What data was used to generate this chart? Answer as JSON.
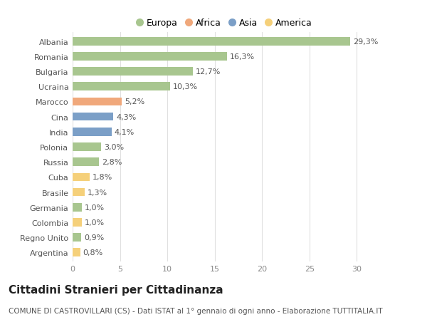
{
  "countries": [
    "Albania",
    "Romania",
    "Bulgaria",
    "Ucraina",
    "Marocco",
    "Cina",
    "India",
    "Polonia",
    "Russia",
    "Cuba",
    "Brasile",
    "Germania",
    "Colombia",
    "Regno Unito",
    "Argentina"
  ],
  "values": [
    29.3,
    16.3,
    12.7,
    10.3,
    5.2,
    4.3,
    4.1,
    3.0,
    2.8,
    1.8,
    1.3,
    1.0,
    1.0,
    0.9,
    0.8
  ],
  "labels": [
    "29,3%",
    "16,3%",
    "12,7%",
    "10,3%",
    "5,2%",
    "4,3%",
    "4,1%",
    "3,0%",
    "2,8%",
    "1,8%",
    "1,3%",
    "1,0%",
    "1,0%",
    "0,9%",
    "0,8%"
  ],
  "colors": [
    "#a8c68f",
    "#a8c68f",
    "#a8c68f",
    "#a8c68f",
    "#f0a87b",
    "#7b9fc7",
    "#7b9fc7",
    "#a8c68f",
    "#a8c68f",
    "#f5d07a",
    "#f5d07a",
    "#a8c68f",
    "#f5d07a",
    "#a8c68f",
    "#f5d07a"
  ],
  "legend_labels": [
    "Europa",
    "Africa",
    "Asia",
    "America"
  ],
  "legend_colors": [
    "#a8c68f",
    "#f0a87b",
    "#7b9fc7",
    "#f5d07a"
  ],
  "title": "Cittadini Stranieri per Cittadinanza",
  "subtitle": "COMUNE DI CASTROVILLARI (CS) - Dati ISTAT al 1° gennaio di ogni anno - Elaborazione TUTTITALIA.IT",
  "xlim": [
    0,
    32
  ],
  "xticks": [
    0,
    5,
    10,
    15,
    20,
    25,
    30
  ],
  "background_color": "#ffffff",
  "grid_color": "#e0e0e0",
  "bar_height": 0.55,
  "label_fontsize": 8,
  "tick_fontsize": 8,
  "title_fontsize": 11,
  "subtitle_fontsize": 7.5
}
